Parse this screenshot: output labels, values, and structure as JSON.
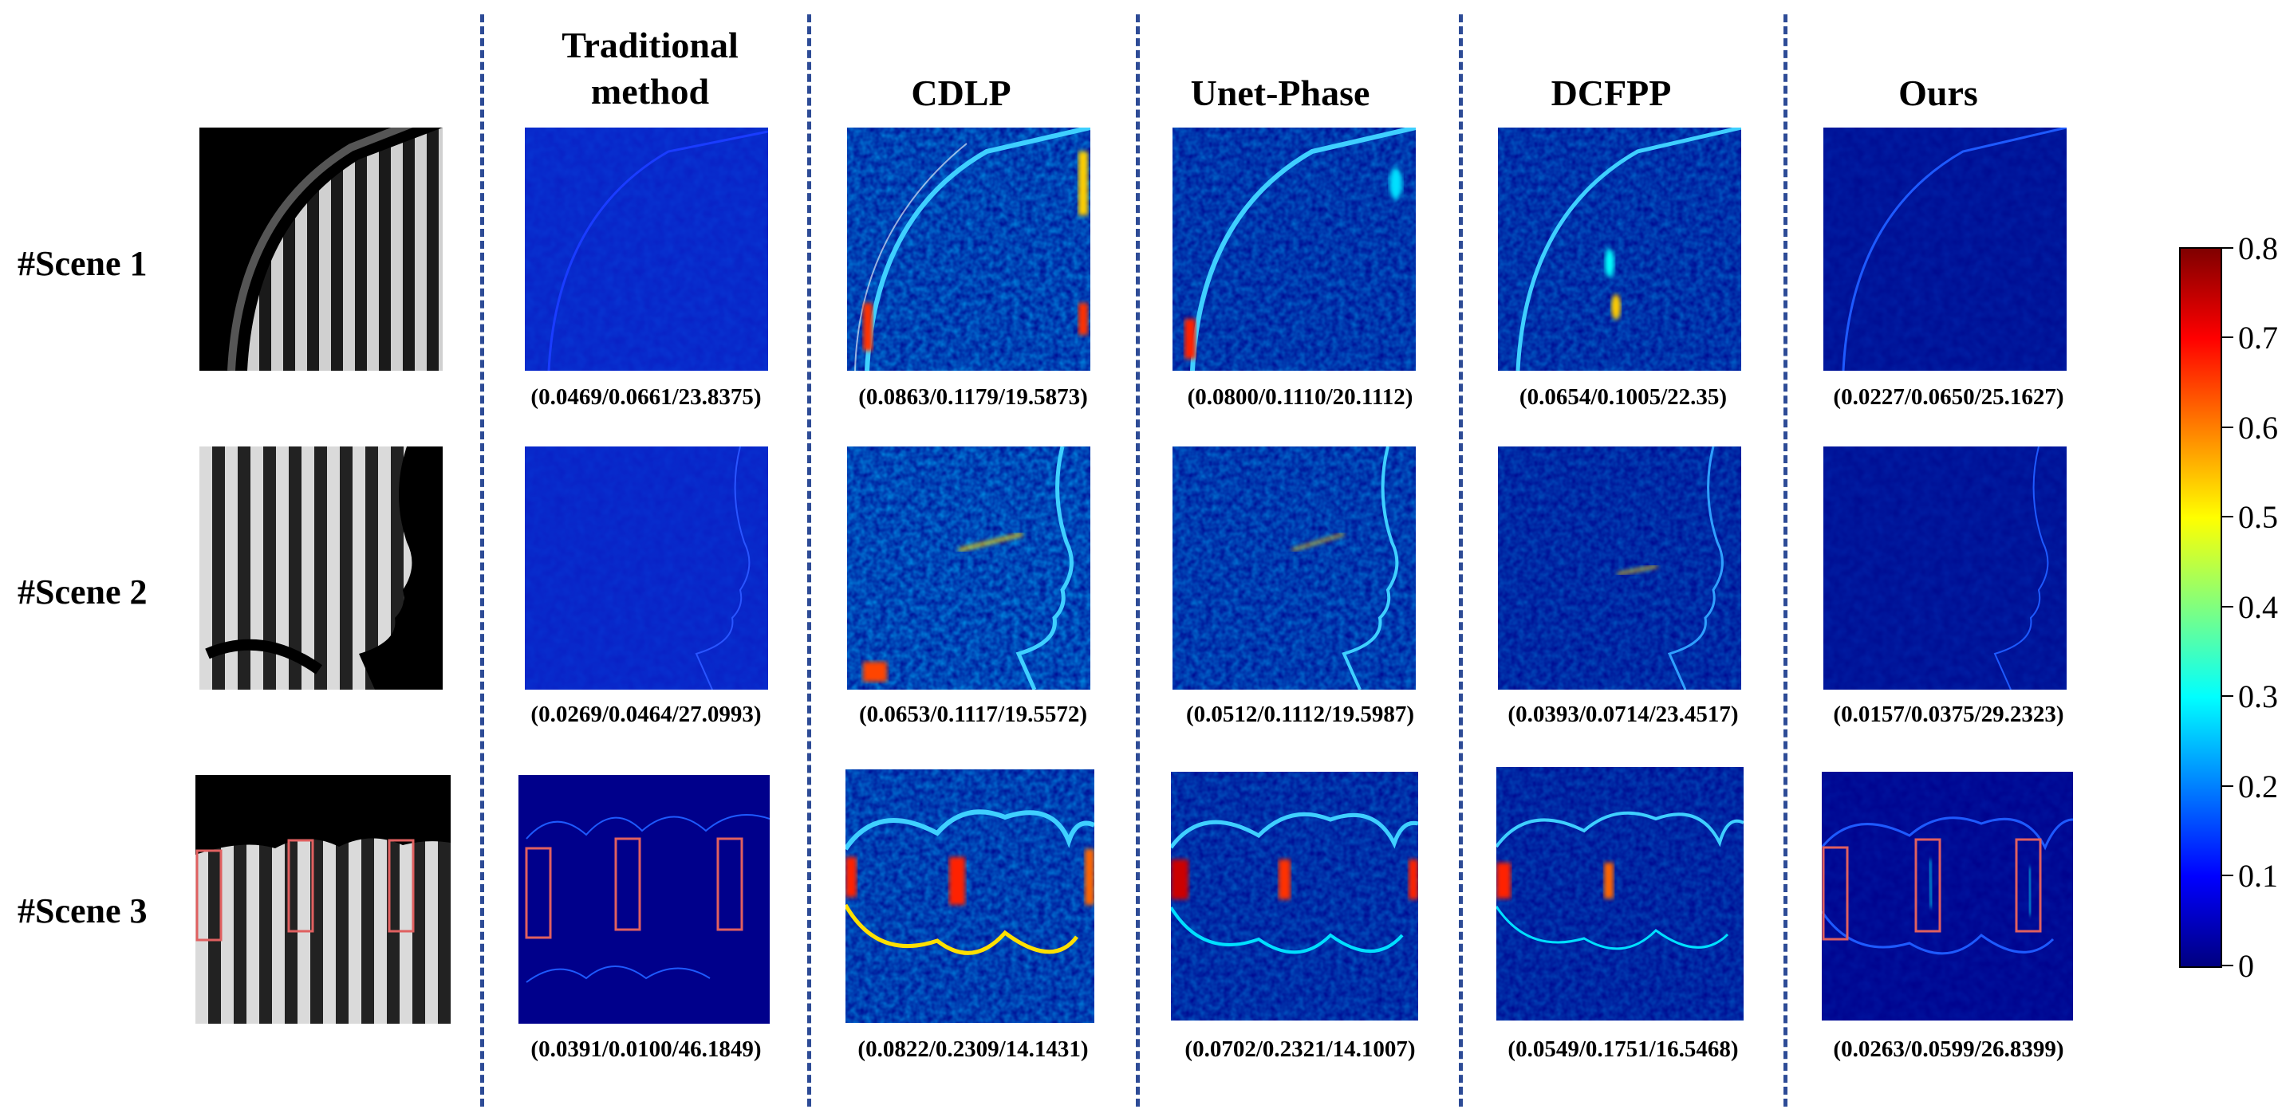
{
  "columns": [
    "",
    "Traditional method",
    "CDLP",
    "Unet-Phase",
    "DCFPP",
    "Ours"
  ],
  "headers": {
    "traditional_line1": "Traditional",
    "traditional_line2": "method",
    "cdlp": "CDLP",
    "unet": "Unet-Phase",
    "dcfpp": "DCFPP",
    "ours": "Ours"
  },
  "rows": [
    {
      "label": "#Scene 1",
      "metrics": [
        "(0.0469/0.0661/23.8375)",
        "(0.0863/0.1179/19.5873)",
        "(0.0800/0.1110/20.1112)",
        "(0.0654/0.1005/22.35)",
        "(0.0227/0.0650/25.1627)"
      ]
    },
    {
      "label": "#Scene 2",
      "metrics": [
        "(0.0269/0.0464/27.0993)",
        "(0.0653/0.1117/19.5572)",
        "(0.0512/0.1112/19.5987)",
        "(0.0393/0.0714/23.4517)",
        "(0.0157/0.0375/29.2323)"
      ]
    },
    {
      "label": "#Scene 3",
      "metrics": [
        "(0.0391/0.0100/46.1849)",
        "(0.0822/0.2309/14.1431)",
        "(0.0702/0.2321/14.1007)",
        "(0.0549/0.1751/16.5468)",
        "(0.0263/0.0599/26.8399)"
      ]
    }
  ],
  "colorbar": {
    "min": 0,
    "max": 0.8,
    "ticks": [
      "0.8",
      "0.7",
      "0.6",
      "0.5",
      "0.4",
      "0.3",
      "0.2",
      "0.1",
      "0"
    ],
    "colormap": "jet",
    "background_color": "#000080"
  },
  "colors": {
    "divider": "#2d4b96",
    "highlight_box": "#e06060",
    "error_map_bg": "#00008b"
  }
}
